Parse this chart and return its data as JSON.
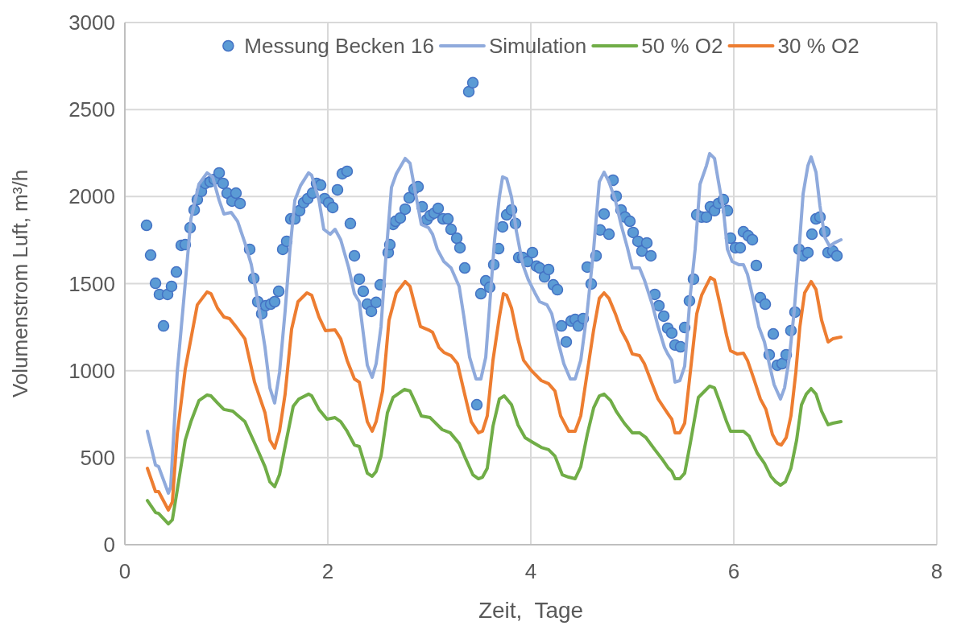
{
  "chart_data": {
    "type": "line",
    "xlabel": "Zeit,  Tage",
    "ylabel": "Volumenstrom Luft, m³/h",
    "xlim": [
      0,
      8
    ],
    "ylim": [
      0,
      3000
    ],
    "xticks": [
      0,
      2,
      4,
      6,
      8
    ],
    "yticks": [
      0,
      500,
      1000,
      1500,
      2000,
      2500,
      3000
    ],
    "grid": true,
    "legend": "top",
    "line_style": "solid",
    "series": [
      {
        "name": "Messung Becken 16",
        "type": "scatter",
        "marker": "circle",
        "color": "#5b9bd5",
        "x": [
          0.214,
          0.254,
          0.302,
          0.341,
          0.381,
          0.421,
          0.46,
          0.508,
          0.556,
          0.595,
          0.643,
          0.683,
          0.714,
          0.754,
          0.794,
          0.841,
          0.881,
          0.929,
          0.968,
          1.008,
          1.056,
          1.095,
          1.135,
          1.23,
          1.27,
          1.31,
          1.349,
          1.389,
          1.437,
          1.476,
          1.516,
          1.556,
          1.595,
          1.635,
          1.675,
          1.722,
          1.762,
          1.802,
          1.849,
          1.889,
          1.929,
          1.968,
          2.008,
          2.048,
          2.095,
          2.143,
          2.19,
          2.222,
          2.262,
          2.31,
          2.349,
          2.389,
          2.429,
          2.476,
          2.516,
          2.595,
          2.611,
          2.643,
          2.667,
          2.714,
          2.762,
          2.802,
          2.849,
          2.889,
          2.929,
          2.976,
          3.008,
          3.048,
          3.087,
          3.135,
          3.183,
          3.214,
          3.27,
          3.302,
          3.349,
          3.389,
          3.429,
          3.468,
          3.508,
          3.556,
          3.595,
          3.635,
          3.683,
          3.722,
          3.762,
          3.81,
          3.849,
          3.881,
          3.921,
          3.968,
          4.016,
          4.056,
          4.087,
          4.135,
          4.175,
          4.222,
          4.262,
          4.302,
          4.349,
          4.397,
          4.437,
          4.468,
          4.516,
          4.556,
          4.595,
          4.643,
          4.683,
          4.722,
          4.77,
          4.81,
          4.841,
          4.889,
          4.929,
          4.976,
          5.008,
          5.056,
          5.095,
          5.143,
          5.183,
          5.222,
          5.262,
          5.31,
          5.349,
          5.389,
          5.421,
          5.476,
          5.516,
          5.563,
          5.603,
          5.635,
          5.683,
          5.73,
          5.77,
          5.81,
          5.849,
          5.897,
          5.937,
          5.968,
          6.016,
          6.063,
          6.095,
          6.143,
          6.183,
          6.222,
          6.262,
          6.31,
          6.349,
          6.389,
          6.429,
          6.476,
          6.516,
          6.563,
          6.603,
          6.643,
          6.683,
          6.73,
          6.77,
          6.81,
          6.849,
          6.897,
          6.929,
          6.976,
          7.016
        ],
        "values": [
          1835,
          1664,
          1502,
          1438,
          1257,
          1438,
          1484,
          1567,
          1720,
          1724,
          1821,
          1923,
          1983,
          2030,
          2076,
          2085,
          2099,
          2136,
          2076,
          2020,
          1974,
          2020,
          1960,
          1697,
          1530,
          1396,
          1327,
          1373,
          1382,
          1396,
          1456,
          1697,
          1743,
          1872,
          1872,
          1919,
          1965,
          1988,
          2020,
          2076,
          2066,
          1988,
          1965,
          1937,
          2039,
          2131,
          2145,
          1845,
          1660,
          1526,
          1456,
          1382,
          1341,
          1392,
          1493,
          1678,
          1724,
          1840,
          1858,
          1877,
          1928,
          1993,
          2043,
          2057,
          1942,
          1868,
          1891,
          1905,
          1932,
          1872,
          1872,
          1812,
          1761,
          1706,
          1590,
          2603,
          2654,
          804,
          1442,
          1516,
          1479,
          1609,
          1701,
          1826,
          1895,
          1923,
          1845,
          1650,
          1650,
          1627,
          1678,
          1600,
          1590,
          1539,
          1581,
          1493,
          1465,
          1257,
          1165,
          1285,
          1294,
          1257,
          1299,
          1595,
          1498,
          1660,
          1808,
          1900,
          1784,
          2094,
          2002,
          1923,
          1882,
          1858,
          1794,
          1743,
          1687,
          1734,
          1660,
          1438,
          1373,
          1313,
          1244,
          1216,
          1147,
          1137,
          1248,
          1401,
          1526,
          1895,
          1882,
          1882,
          1942,
          1919,
          1960,
          1983,
          1919,
          1761,
          1706,
          1706,
          1798,
          1775,
          1752,
          1604,
          1419,
          1382,
          1091,
          1211,
          1031,
          1040,
          1091,
          1230,
          1336,
          1697,
          1660,
          1678,
          1784,
          1872,
          1882,
          1798,
          1678,
          1687,
          1660
        ]
      },
      {
        "name": "Simulation",
        "color": "#8faadc",
        "x": [
          0.222,
          0.302,
          0.333,
          0.429,
          0.452,
          0.516,
          0.595,
          0.651,
          0.73,
          0.81,
          0.865,
          0.929,
          0.976,
          1.048,
          1.111,
          1.183,
          1.246,
          1.31,
          1.381,
          1.429,
          1.476,
          1.524,
          1.579,
          1.627,
          1.675,
          1.73,
          1.81,
          1.841,
          1.913,
          1.96,
          2.024,
          2.071,
          2.127,
          2.206,
          2.262,
          2.31,
          2.389,
          2.437,
          2.476,
          2.524,
          2.571,
          2.627,
          2.675,
          2.762,
          2.81,
          2.865,
          2.921,
          2.992,
          3.032,
          3.079,
          3.143,
          3.214,
          3.294,
          3.341,
          3.397,
          3.46,
          3.508,
          3.556,
          3.595,
          3.643,
          3.69,
          3.722,
          3.762,
          3.81,
          3.857,
          3.921,
          3.976,
          4.04,
          4.087,
          4.159,
          4.206,
          4.27,
          4.325,
          4.389,
          4.437,
          4.492,
          4.556,
          4.619,
          4.675,
          4.722,
          4.77,
          4.833,
          4.889,
          4.952,
          5.0,
          5.071,
          5.119,
          5.198,
          5.254,
          5.317,
          5.349,
          5.389,
          5.421,
          5.468,
          5.516,
          5.571,
          5.619,
          5.667,
          5.73,
          5.762,
          5.81,
          5.849,
          5.897,
          5.937,
          5.984,
          6.048,
          6.095,
          6.135,
          6.183,
          6.246,
          6.302,
          6.349,
          6.397,
          6.46,
          6.5,
          6.548,
          6.595,
          6.643,
          6.683,
          6.73,
          6.762,
          6.81,
          6.849,
          6.897,
          6.944,
          6.992,
          7.056
        ],
        "values": [
          652,
          458,
          448,
          296,
          333,
          989,
          1502,
          1872,
          2071,
          2136,
          2113,
          1979,
          1900,
          1909,
          1858,
          1734,
          1609,
          1396,
          1133,
          901,
          814,
          989,
          1341,
          1697,
          1979,
          2062,
          2136,
          2122,
          1979,
          1812,
          1784,
          1812,
          1752,
          1590,
          1442,
          1396,
          1031,
          962,
          1040,
          1253,
          1646,
          2053,
          2131,
          2219,
          2191,
          2016,
          1840,
          1821,
          1784,
          1697,
          1627,
          1590,
          1484,
          1308,
          1077,
          952,
          952,
          1077,
          1378,
          1752,
          1997,
          2113,
          2103,
          1997,
          1803,
          1609,
          1521,
          1447,
          1396,
          1378,
          1327,
          1165,
          1040,
          952,
          952,
          1059,
          1341,
          1697,
          2085,
          2140,
          2085,
          1979,
          1840,
          1706,
          1590,
          1590,
          1521,
          1378,
          1253,
          1133,
          1096,
          1059,
          934,
          943,
          1026,
          1433,
          1697,
          2071,
          2177,
          2247,
          2219,
          2085,
          1928,
          1697,
          1627,
          1609,
          1609,
          1553,
          1433,
          1253,
          1165,
          1040,
          920,
          837,
          901,
          1077,
          1341,
          1697,
          2016,
          2177,
          2228,
          2140,
          1946,
          1766,
          1715,
          1734,
          1752
        ]
      },
      {
        "name": "50 % O2",
        "color": "#70ad47",
        "x": [
          0.222,
          0.302,
          0.333,
          0.429,
          0.468,
          0.516,
          0.595,
          0.651,
          0.73,
          0.81,
          0.849,
          0.913,
          0.976,
          1.063,
          1.183,
          1.294,
          1.381,
          1.429,
          1.476,
          1.524,
          1.579,
          1.659,
          1.714,
          1.81,
          1.841,
          1.913,
          1.992,
          2.071,
          2.127,
          2.19,
          2.262,
          2.31,
          2.389,
          2.437,
          2.476,
          2.524,
          2.587,
          2.643,
          2.754,
          2.81,
          2.865,
          2.921,
          3.008,
          3.048,
          3.127,
          3.206,
          3.294,
          3.357,
          3.429,
          3.484,
          3.524,
          3.571,
          3.627,
          3.69,
          3.738,
          3.81,
          3.873,
          3.944,
          4.008,
          4.103,
          4.175,
          4.238,
          4.31,
          4.373,
          4.437,
          4.492,
          4.556,
          4.619,
          4.675,
          4.722,
          4.786,
          4.841,
          4.921,
          5.0,
          5.071,
          5.135,
          5.222,
          5.302,
          5.357,
          5.389,
          5.421,
          5.468,
          5.516,
          5.571,
          5.651,
          5.714,
          5.762,
          5.81,
          5.865,
          5.929,
          5.968,
          6.032,
          6.095,
          6.151,
          6.23,
          6.302,
          6.365,
          6.413,
          6.46,
          6.508,
          6.563,
          6.619,
          6.667,
          6.714,
          6.762,
          6.81,
          6.865,
          6.929,
          6.976,
          7.056
        ],
        "values": [
          254,
          185,
          180,
          120,
          143,
          314,
          601,
          707,
          828,
          860,
          855,
          814,
          777,
          767,
          707,
          564,
          448,
          361,
          333,
          402,
          564,
          795,
          837,
          865,
          855,
          777,
          721,
          730,
          707,
          652,
          573,
          564,
          411,
          393,
          421,
          509,
          758,
          846,
          892,
          883,
          814,
          740,
          730,
          707,
          661,
          643,
          582,
          495,
          402,
          379,
          388,
          439,
          680,
          837,
          855,
          804,
          689,
          615,
          592,
          559,
          546,
          509,
          402,
          388,
          379,
          448,
          633,
          786,
          855,
          865,
          828,
          767,
          698,
          643,
          643,
          615,
          546,
          485,
          439,
          421,
          379,
          379,
          411,
          582,
          846,
          883,
          911,
          901,
          814,
          707,
          652,
          652,
          652,
          624,
          527,
          467,
          393,
          361,
          342,
          361,
          439,
          601,
          804,
          865,
          897,
          865,
          767,
          689,
          698,
          707
        ]
      },
      {
        "name": "30 % O2",
        "color": "#ed7d31",
        "x": [
          0.222,
          0.302,
          0.333,
          0.429,
          0.468,
          0.516,
          0.595,
          0.651,
          0.714,
          0.81,
          0.849,
          0.913,
          0.976,
          1.032,
          1.095,
          1.183,
          1.278,
          1.381,
          1.429,
          1.476,
          1.524,
          1.579,
          1.643,
          1.706,
          1.794,
          1.841,
          1.913,
          1.976,
          2.071,
          2.127,
          2.19,
          2.262,
          2.31,
          2.389,
          2.437,
          2.476,
          2.54,
          2.603,
          2.675,
          2.762,
          2.81,
          2.865,
          2.913,
          2.992,
          3.032,
          3.095,
          3.143,
          3.214,
          3.278,
          3.341,
          3.413,
          3.484,
          3.524,
          3.571,
          3.627,
          3.69,
          3.73,
          3.762,
          3.81,
          3.873,
          3.929,
          4.008,
          4.103,
          4.175,
          4.238,
          4.294,
          4.373,
          4.437,
          4.492,
          4.556,
          4.619,
          4.675,
          4.722,
          4.77,
          4.833,
          4.889,
          4.952,
          5.0,
          5.071,
          5.119,
          5.198,
          5.254,
          5.302,
          5.365,
          5.389,
          5.421,
          5.468,
          5.516,
          5.571,
          5.635,
          5.683,
          5.73,
          5.77,
          5.81,
          5.865,
          5.929,
          5.968,
          6.032,
          6.095,
          6.135,
          6.198,
          6.262,
          6.317,
          6.381,
          6.429,
          6.468,
          6.516,
          6.563,
          6.611,
          6.651,
          6.698,
          6.762,
          6.81,
          6.865,
          6.929,
          6.976,
          7.056
        ],
        "values": [
          439,
          305,
          305,
          199,
          245,
          633,
          1008,
          1183,
          1378,
          1452,
          1442,
          1359,
          1308,
          1299,
          1253,
          1183,
          934,
          758,
          601,
          555,
          652,
          865,
          1239,
          1396,
          1447,
          1433,
          1308,
          1230,
          1234,
          1183,
          1059,
          952,
          934,
          707,
          652,
          707,
          883,
          1290,
          1447,
          1512,
          1484,
          1359,
          1253,
          1234,
          1220,
          1133,
          1105,
          1086,
          1040,
          883,
          707,
          643,
          652,
          740,
          1059,
          1308,
          1442,
          1433,
          1359,
          1183,
          1059,
          999,
          943,
          925,
          883,
          740,
          652,
          652,
          740,
          989,
          1234,
          1415,
          1447,
          1415,
          1327,
          1234,
          1165,
          1096,
          1086,
          1040,
          920,
          837,
          795,
          740,
          721,
          643,
          643,
          698,
          989,
          1327,
          1433,
          1489,
          1535,
          1521,
          1378,
          1202,
          1114,
          1096,
          1100,
          1059,
          952,
          837,
          777,
          633,
          582,
          573,
          615,
          740,
          989,
          1253,
          1447,
          1512,
          1466,
          1290,
          1165,
          1183,
          1193
        ]
      }
    ]
  }
}
